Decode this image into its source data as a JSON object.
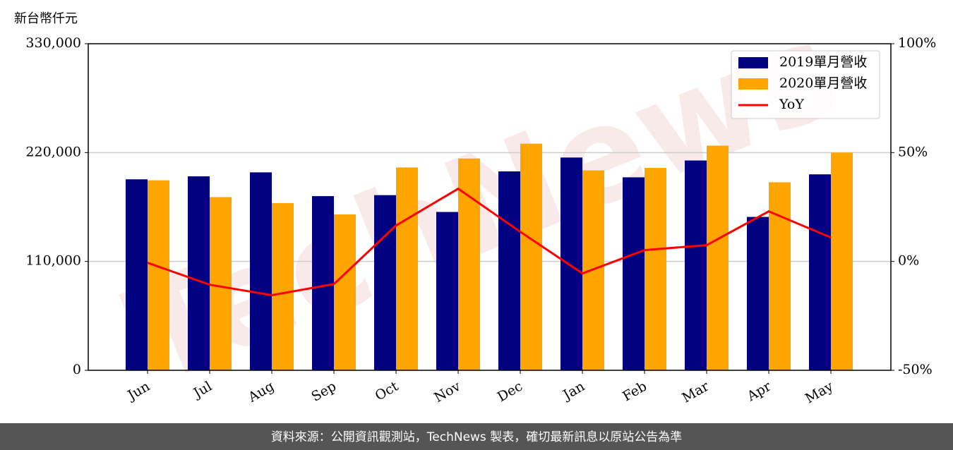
{
  "chart_data": {
    "type": "bar",
    "y_label": "新台幣仟元",
    "categories": [
      "Jun",
      "Jul",
      "Aug",
      "Sep",
      "Oct",
      "Nov",
      "Dec",
      "Jan",
      "Feb",
      "Mar",
      "Apr",
      "May"
    ],
    "series": [
      {
        "name": "2019單月營收",
        "color": "#000080",
        "values": [
          193000,
          196000,
          200000,
          176000,
          177000,
          160000,
          201000,
          215000,
          195000,
          212000,
          155000,
          198000
        ]
      },
      {
        "name": "2020單月營收",
        "color": "#ffa500",
        "values": [
          192000,
          175000,
          169000,
          157500,
          205000,
          214000,
          229000,
          202000,
          204500,
          227000,
          190000,
          220000
        ]
      },
      {
        "name": "YoY",
        "color": "#ff0000",
        "type": "line",
        "axis": "y2",
        "values": [
          -0.6,
          -10.7,
          -15.5,
          -10.4,
          16.5,
          33.4,
          13.6,
          -5.5,
          5.2,
          7.5,
          23,
          11
        ]
      }
    ],
    "ylim": [
      0,
      330000
    ],
    "yticks": [
      0,
      {
        "value": 110000,
        "label": "110,000"
      },
      {
        "value": 220000,
        "label": "220,000"
      },
      {
        "value": 330000,
        "label": "330,000"
      }
    ],
    "y2lim": [
      -50,
      100
    ],
    "y2ticks": [
      {
        "value": -50,
        "label": "-50%"
      },
      {
        "value": 0,
        "label": "0%"
      },
      {
        "value": 50,
        "label": "50%"
      },
      {
        "value": 100,
        "label": "100%"
      }
    ],
    "grid": true,
    "legend": "upper right",
    "watermark": "TechNews",
    "footer": "資料來源：公開資訊觀測站，TechNews 製表，確切最新訊息以原站公告為準"
  }
}
